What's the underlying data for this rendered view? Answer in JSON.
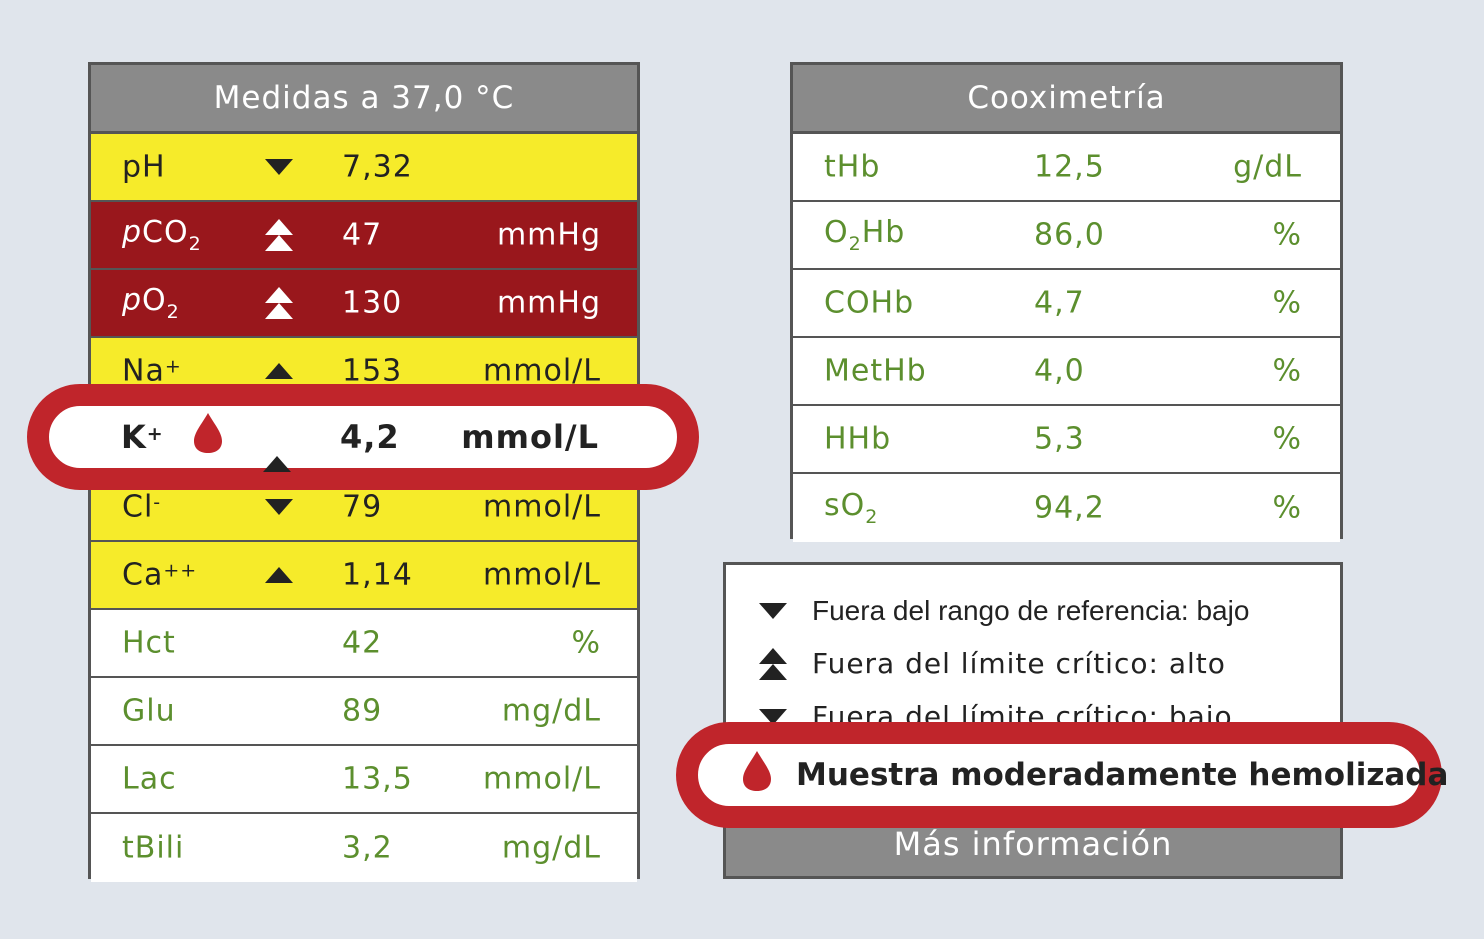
{
  "measures": {
    "title": "Medidas a 37,0 °C",
    "rows": [
      {
        "name": "pH",
        "value": "7,32",
        "unit": ""
      },
      {
        "name": "p",
        "name_main": "CO",
        "name_sub": "2",
        "value": "47",
        "unit": "mmHg"
      },
      {
        "name": "p",
        "name_main": "O",
        "name_sub": "2",
        "value": "130",
        "unit": "mmHg"
      },
      {
        "name": "Na",
        "name_sup": "+",
        "value": "153",
        "unit": "mmol/L"
      },
      {
        "name": "K",
        "name_sup": "+",
        "value": "4,2",
        "unit": "mmol/L"
      },
      {
        "name": "Cl",
        "name_sup": "-",
        "value": "79",
        "unit": "mmol/L"
      },
      {
        "name": "Ca",
        "name_sup": "++",
        "value": "1,14",
        "unit": "mmol/L"
      },
      {
        "name": "Hct",
        "value": "42",
        "unit": "%"
      },
      {
        "name": "Glu",
        "value": "89",
        "unit": "mg/dL"
      },
      {
        "name": "Lac",
        "value": "13,5",
        "unit": "mmol/L"
      },
      {
        "name": "tBili",
        "value": "3,2",
        "unit": "mg/dL"
      }
    ]
  },
  "cooximetry": {
    "title": "Cooximetría",
    "rows": [
      {
        "name": "tHb",
        "value": "12,5",
        "unit": "g/dL"
      },
      {
        "name_a": "O",
        "name_sub": "2",
        "name_b": "Hb",
        "value": "86,0",
        "unit": "%"
      },
      {
        "name": "COHb",
        "value": "4,7",
        "unit": "%"
      },
      {
        "name": "MetHb",
        "value": "4,0",
        "unit": "%"
      },
      {
        "name": "HHb",
        "value": "5,3",
        "unit": "%"
      },
      {
        "name_a": "sO",
        "name_sub": "2",
        "value": "94,2",
        "unit": "%"
      }
    ]
  },
  "legend": {
    "items": [
      {
        "icon": "triangle-down-icon",
        "label": "Fuera del rango de referencia: bajo"
      },
      {
        "icon": "double-triangle-up-icon",
        "label": "Fuera del límite crítico: alto"
      },
      {
        "icon": "triangle-down-icon",
        "label": "Fuera del límite crítico: bajo"
      }
    ],
    "hemolysis": "Muestra moderadamente hemolizada",
    "more_info": "Más información"
  },
  "colors": {
    "yellow": "#f6eb2a",
    "dark_red": "#99171c",
    "callout_red": "#c0252b",
    "green_text": "#5c8f2e",
    "header_gray": "#8a8a8a"
  }
}
